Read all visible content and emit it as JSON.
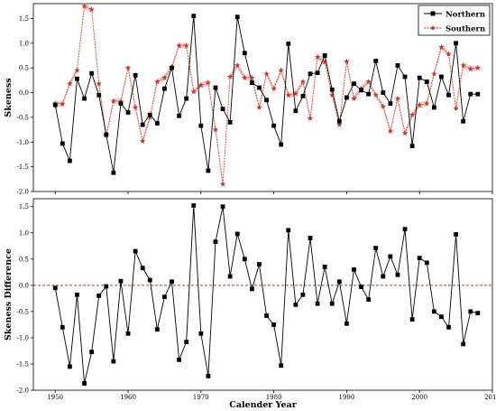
{
  "colors": {
    "northern": "#000000",
    "southern": "#c0392b",
    "southern_band": "#f3bcbc",
    "zero_line": "#c0392b"
  },
  "chart_data": [
    {
      "type": "line",
      "panel": "top",
      "ylabel": "Skeness",
      "xlabel": "",
      "xlim": [
        1947,
        2010
      ],
      "ylim": [
        -2.0,
        1.8
      ],
      "yticks": [
        -2.0,
        -1.5,
        -1.0,
        -0.5,
        0.0,
        0.5,
        1.0,
        1.5
      ],
      "ytick_labels": [
        "-2.0",
        "-1.5",
        "-1.0",
        "-0.5",
        "0.0",
        "0.5",
        "1.0",
        "1.5"
      ],
      "legend": {
        "position": "top-right"
      },
      "x": [
        1950,
        1951,
        1952,
        1953,
        1954,
        1955,
        1956,
        1957,
        1958,
        1959,
        1960,
        1961,
        1962,
        1963,
        1964,
        1965,
        1966,
        1967,
        1968,
        1969,
        1970,
        1971,
        1972,
        1973,
        1974,
        1975,
        1976,
        1977,
        1978,
        1979,
        1980,
        1981,
        1982,
        1983,
        1984,
        1985,
        1986,
        1987,
        1988,
        1989,
        1990,
        1991,
        1992,
        1993,
        1994,
        1995,
        1996,
        1997,
        1998,
        1999,
        2000,
        2001,
        2002,
        2003,
        2004,
        2005,
        2006,
        2007,
        2008
      ],
      "series": [
        {
          "name": "Northern",
          "marker": "square",
          "values": [
            -0.25,
            -1.03,
            -1.38,
            0.28,
            -0.12,
            0.39,
            -0.05,
            -0.85,
            -1.62,
            -0.22,
            -0.4,
            0.35,
            -0.65,
            -0.45,
            -0.62,
            0.08,
            0.5,
            -0.47,
            -0.12,
            1.55,
            -0.67,
            -1.58,
            0.1,
            -0.33,
            -0.6,
            1.53,
            0.8,
            0.2,
            0.1,
            -0.15,
            -0.67,
            -1.05,
            0.99,
            -0.37,
            -0.07,
            0.38,
            0.4,
            0.75,
            0.06,
            -0.58,
            -0.1,
            0.18,
            0.05,
            -0.03,
            0.64,
            0.0,
            -0.22,
            0.55,
            0.32,
            -1.08,
            0.3,
            0.22,
            -0.3,
            0.32,
            -0.05,
            1.0,
            -0.58,
            -0.03,
            -0.03
          ]
        },
        {
          "name": "Southern",
          "marker": "star",
          "values": [
            -0.22,
            -0.23,
            0.18,
            0.45,
            1.75,
            1.68,
            0.18,
            -0.87,
            -0.17,
            -0.18,
            0.5,
            -0.3,
            -0.98,
            -0.5,
            0.22,
            0.3,
            0.52,
            0.95,
            0.95,
            0.02,
            0.15,
            0.2,
            -0.75,
            -1.85,
            0.32,
            0.55,
            0.3,
            0.3,
            -0.3,
            0.38,
            0.08,
            0.45,
            -0.05,
            -0.02,
            0.22,
            -0.52,
            0.72,
            0.62,
            -0.05,
            -0.65,
            0.63,
            -0.12,
            0.08,
            0.22,
            -0.05,
            -0.28,
            -0.78,
            -0.12,
            -0.82,
            -0.45,
            -0.25,
            -0.22,
            0.38,
            0.92,
            0.78,
            -0.32,
            0.55,
            0.48,
            0.5
          ]
        }
      ]
    },
    {
      "type": "line",
      "panel": "bottom",
      "ylabel": "Skeness Difference",
      "xlabel": "Calender Year",
      "xlim": [
        1947,
        2010
      ],
      "ylim": [
        -2.0,
        1.65
      ],
      "xticks": [
        1950,
        1960,
        1970,
        1980,
        1990,
        2000,
        2010
      ],
      "xtick_labels": [
        "1950",
        "1960",
        "1970",
        "1980",
        "1990",
        "2000",
        "2010"
      ],
      "yticks": [
        -2.0,
        -1.5,
        -1.0,
        -0.5,
        0.0,
        0.5,
        1.0,
        1.5
      ],
      "ytick_labels": [
        "-2.0",
        "-1.5",
        "-1.0",
        "-0.5",
        "0.0",
        "0.5",
        "1.0",
        "1.5"
      ],
      "reference_line": 0.0,
      "x": [
        1950,
        1951,
        1952,
        1953,
        1954,
        1955,
        1956,
        1957,
        1958,
        1959,
        1960,
        1961,
        1962,
        1963,
        1964,
        1965,
        1966,
        1967,
        1968,
        1969,
        1970,
        1971,
        1972,
        1973,
        1974,
        1975,
        1976,
        1977,
        1978,
        1979,
        1980,
        1981,
        1982,
        1983,
        1984,
        1985,
        1986,
        1987,
        1988,
        1989,
        1990,
        1991,
        1992,
        1993,
        1994,
        1995,
        1996,
        1997,
        1998,
        1999,
        2000,
        2001,
        2002,
        2003,
        2004,
        2005,
        2006,
        2007,
        2008
      ],
      "series": [
        {
          "marker": "square",
          "values": [
            -0.05,
            -0.8,
            -1.55,
            -0.18,
            -1.87,
            -1.27,
            -0.2,
            -0.02,
            -1.45,
            0.08,
            -0.92,
            0.65,
            0.33,
            0.1,
            -0.84,
            -0.22,
            0.07,
            -1.42,
            -1.08,
            1.52,
            -0.92,
            -1.73,
            0.83,
            1.5,
            0.17,
            0.98,
            0.5,
            -0.07,
            0.4,
            -0.58,
            -0.75,
            -1.53,
            1.05,
            -0.37,
            -0.18,
            0.9,
            -0.35,
            0.35,
            -0.35,
            0.07,
            -0.73,
            0.3,
            -0.03,
            -0.27,
            0.71,
            0.17,
            0.55,
            0.2,
            1.07,
            -0.65,
            0.52,
            0.43,
            -0.5,
            -0.6,
            -0.8,
            0.97,
            -1.12,
            -0.5,
            -0.53
          ]
        }
      ]
    }
  ]
}
